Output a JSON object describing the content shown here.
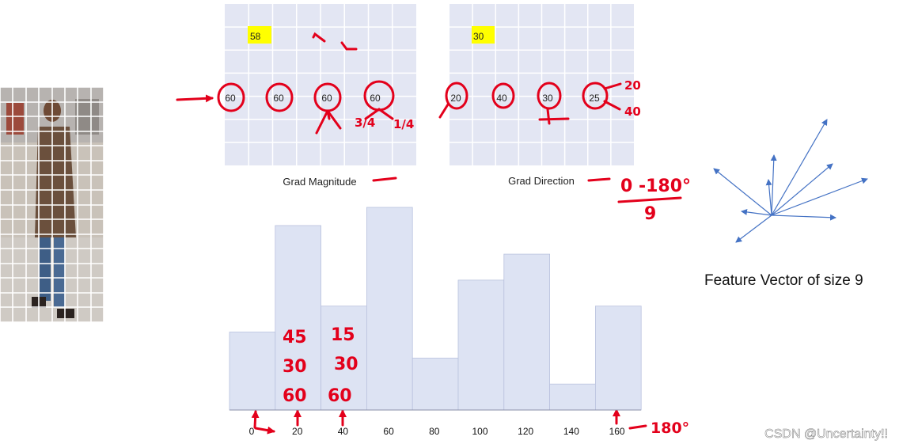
{
  "magnitude_grid": {
    "highlight_value": "58",
    "circled_values": [
      "60",
      "60",
      "60",
      "60"
    ],
    "caption": "Grad Magnitude",
    "split_notes": [
      "3/4",
      "1/4"
    ]
  },
  "direction_grid": {
    "highlight_value": "30",
    "circled_values": [
      "20",
      "40",
      "30",
      "25"
    ],
    "caption": "Grad Direction",
    "side_notes": [
      "20",
      "40"
    ]
  },
  "formula": {
    "numerator": "0 -180°",
    "denominator": "9"
  },
  "histogram": {
    "x_ticks": [
      "0",
      "20",
      "40",
      "60",
      "80",
      "100",
      "120",
      "140",
      "160"
    ],
    "end_note": "180°",
    "bin_notes": [
      [
        "45",
        "30",
        "60"
      ],
      [
        "15",
        "30",
        "60"
      ]
    ]
  },
  "chart_data": {
    "type": "bar",
    "categories": [
      "0",
      "20",
      "40",
      "60",
      "80",
      "100",
      "120",
      "140",
      "160"
    ],
    "values": [
      3.0,
      7.1,
      4.0,
      7.8,
      2.0,
      5.0,
      6.0,
      1.0,
      4.0
    ],
    "xlabel": "",
    "ylabel": "",
    "color": "#dde3f3"
  },
  "feature_vector": {
    "caption": "Feature Vector of size 9",
    "arrow_count": 9
  },
  "watermark": "CSDN @Uncertainty!!",
  "colors": {
    "ink": "#e3001b",
    "grid_bg": "#e3e6f3",
    "arrow": "#4472c4",
    "highlight": "#ffff00"
  }
}
